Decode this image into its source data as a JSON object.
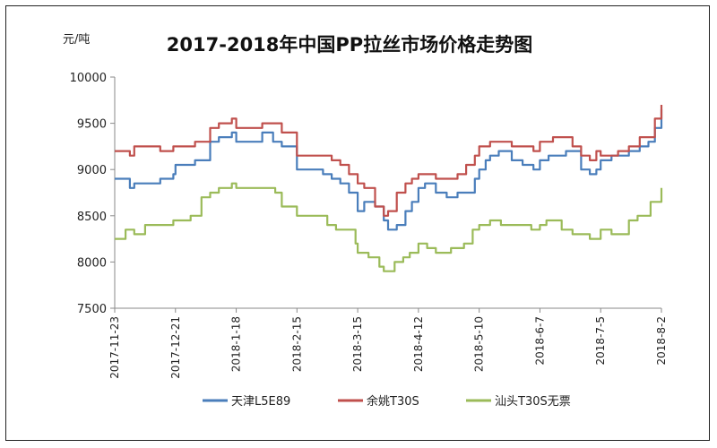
{
  "chart_data": {
    "type": "line",
    "title": "2017-2018年中国PP拉丝市场价格走势图",
    "ylabel": "元/吨",
    "xlabel": "",
    "ylim": [
      7500,
      10000
    ],
    "yticks": [
      7500,
      8000,
      8500,
      9000,
      9500,
      10000
    ],
    "xlim": [
      "2017-11-23",
      "2018-08-02"
    ],
    "xticks": [
      "2017-11-23",
      "2017-12-21",
      "2018-1-18",
      "2018-2-15",
      "2018-3-15",
      "2018-4-12",
      "2018-5-10",
      "2018-6-7",
      "2018-7-5",
      "2018-8-2"
    ],
    "grid": false,
    "legend_position": "bottom",
    "series": [
      {
        "name": "天津L5E89",
        "color": "#4a7ebb",
        "x": [
          "2017-11-23",
          "2017-11-30",
          "2017-12-02",
          "2017-12-07",
          "2017-12-14",
          "2017-12-20",
          "2017-12-21",
          "2017-12-25",
          "2017-12-30",
          "2018-01-06",
          "2018-01-10",
          "2018-01-16",
          "2018-01-18",
          "2018-01-24",
          "2018-01-30",
          "2018-02-04",
          "2018-02-08",
          "2018-02-15",
          "2018-02-27",
          "2018-03-03",
          "2018-03-07",
          "2018-03-11",
          "2018-03-15",
          "2018-03-18",
          "2018-03-23",
          "2018-03-27",
          "2018-03-29",
          "2018-04-02",
          "2018-04-06",
          "2018-04-09",
          "2018-04-12",
          "2018-04-15",
          "2018-04-20",
          "2018-04-25",
          "2018-04-30",
          "2018-05-04",
          "2018-05-08",
          "2018-05-10",
          "2018-05-13",
          "2018-05-15",
          "2018-05-19",
          "2018-05-25",
          "2018-05-30",
          "2018-06-04",
          "2018-06-07",
          "2018-06-11",
          "2018-06-13",
          "2018-06-19",
          "2018-06-22",
          "2018-06-26",
          "2018-06-30",
          "2018-07-03",
          "2018-07-05",
          "2018-07-10",
          "2018-07-13",
          "2018-07-18",
          "2018-07-23",
          "2018-07-27",
          "2018-07-30",
          "2018-08-02"
        ],
        "values": [
          8900,
          8800,
          8850,
          8850,
          8900,
          8950,
          9050,
          9050,
          9100,
          9300,
          9350,
          9400,
          9300,
          9300,
          9400,
          9300,
          9250,
          9000,
          8950,
          8900,
          8850,
          8750,
          8550,
          8650,
          8600,
          8450,
          8350,
          8400,
          8550,
          8650,
          8800,
          8850,
          8750,
          8700,
          8750,
          8750,
          8900,
          9000,
          9100,
          9150,
          9200,
          9100,
          9050,
          9000,
          9100,
          9150,
          9150,
          9200,
          9200,
          9000,
          8950,
          9000,
          9100,
          9150,
          9150,
          9200,
          9250,
          9300,
          9450,
          9650
        ]
      },
      {
        "name": "余姚T30S",
        "color": "#c0504d",
        "x": [
          "2017-11-23",
          "2017-11-30",
          "2017-12-02",
          "2017-12-07",
          "2017-12-14",
          "2017-12-20",
          "2017-12-21",
          "2017-12-25",
          "2017-12-30",
          "2018-01-06",
          "2018-01-10",
          "2018-01-16",
          "2018-01-18",
          "2018-01-24",
          "2018-01-30",
          "2018-02-04",
          "2018-02-08",
          "2018-02-15",
          "2018-02-27",
          "2018-03-03",
          "2018-03-07",
          "2018-03-11",
          "2018-03-15",
          "2018-03-18",
          "2018-03-23",
          "2018-03-27",
          "2018-03-29",
          "2018-04-02",
          "2018-04-06",
          "2018-04-09",
          "2018-04-12",
          "2018-04-15",
          "2018-04-20",
          "2018-04-25",
          "2018-04-30",
          "2018-05-04",
          "2018-05-08",
          "2018-05-10",
          "2018-05-13",
          "2018-05-15",
          "2018-05-19",
          "2018-05-25",
          "2018-05-30",
          "2018-06-04",
          "2018-06-07",
          "2018-06-11",
          "2018-06-13",
          "2018-06-19",
          "2018-06-22",
          "2018-06-26",
          "2018-06-30",
          "2018-07-03",
          "2018-07-05",
          "2018-07-10",
          "2018-07-13",
          "2018-07-18",
          "2018-07-23",
          "2018-07-27",
          "2018-07-30",
          "2018-08-02"
        ],
        "values": [
          9200,
          9150,
          9250,
          9250,
          9200,
          9250,
          9250,
          9250,
          9300,
          9450,
          9500,
          9550,
          9450,
          9450,
          9500,
          9500,
          9400,
          9150,
          9150,
          9100,
          9050,
          8950,
          8850,
          8800,
          8600,
          8500,
          8550,
          8750,
          8850,
          8900,
          8950,
          8950,
          8900,
          8900,
          8950,
          9050,
          9150,
          9250,
          9250,
          9300,
          9300,
          9250,
          9250,
          9200,
          9300,
          9300,
          9350,
          9350,
          9250,
          9150,
          9100,
          9200,
          9150,
          9150,
          9200,
          9250,
          9350,
          9350,
          9550,
          9700
        ]
      },
      {
        "name": "汕头T30S无票",
        "color": "#9bbb59",
        "x": [
          "2017-11-23",
          "2017-11-28",
          "2017-12-02",
          "2017-12-07",
          "2017-12-14",
          "2017-12-20",
          "2017-12-21",
          "2017-12-28",
          "2018-01-02",
          "2018-01-06",
          "2018-01-10",
          "2018-01-16",
          "2018-01-18",
          "2018-01-28",
          "2018-02-05",
          "2018-02-08",
          "2018-02-15",
          "2018-02-22",
          "2018-02-27",
          "2018-03-01",
          "2018-03-05",
          "2018-03-10",
          "2018-03-14",
          "2018-03-15",
          "2018-03-20",
          "2018-03-25",
          "2018-03-27",
          "2018-04-01",
          "2018-04-05",
          "2018-04-08",
          "2018-04-12",
          "2018-04-16",
          "2018-04-20",
          "2018-04-27",
          "2018-05-03",
          "2018-05-07",
          "2018-05-10",
          "2018-05-15",
          "2018-05-20",
          "2018-05-30",
          "2018-06-03",
          "2018-06-07",
          "2018-06-10",
          "2018-06-17",
          "2018-06-22",
          "2018-06-30",
          "2018-07-05",
          "2018-07-10",
          "2018-07-18",
          "2018-07-22",
          "2018-07-28",
          "2018-08-02"
        ],
        "values": [
          8250,
          8350,
          8300,
          8400,
          8400,
          8450,
          8450,
          8500,
          8700,
          8750,
          8800,
          8850,
          8800,
          8800,
          8750,
          8600,
          8500,
          8500,
          8500,
          8400,
          8350,
          8350,
          8200,
          8100,
          8050,
          7950,
          7900,
          8000,
          8050,
          8100,
          8200,
          8150,
          8100,
          8150,
          8200,
          8350,
          8400,
          8450,
          8400,
          8400,
          8350,
          8400,
          8450,
          8350,
          8300,
          8250,
          8350,
          8300,
          8450,
          8500,
          8650,
          8800
        ]
      }
    ]
  }
}
